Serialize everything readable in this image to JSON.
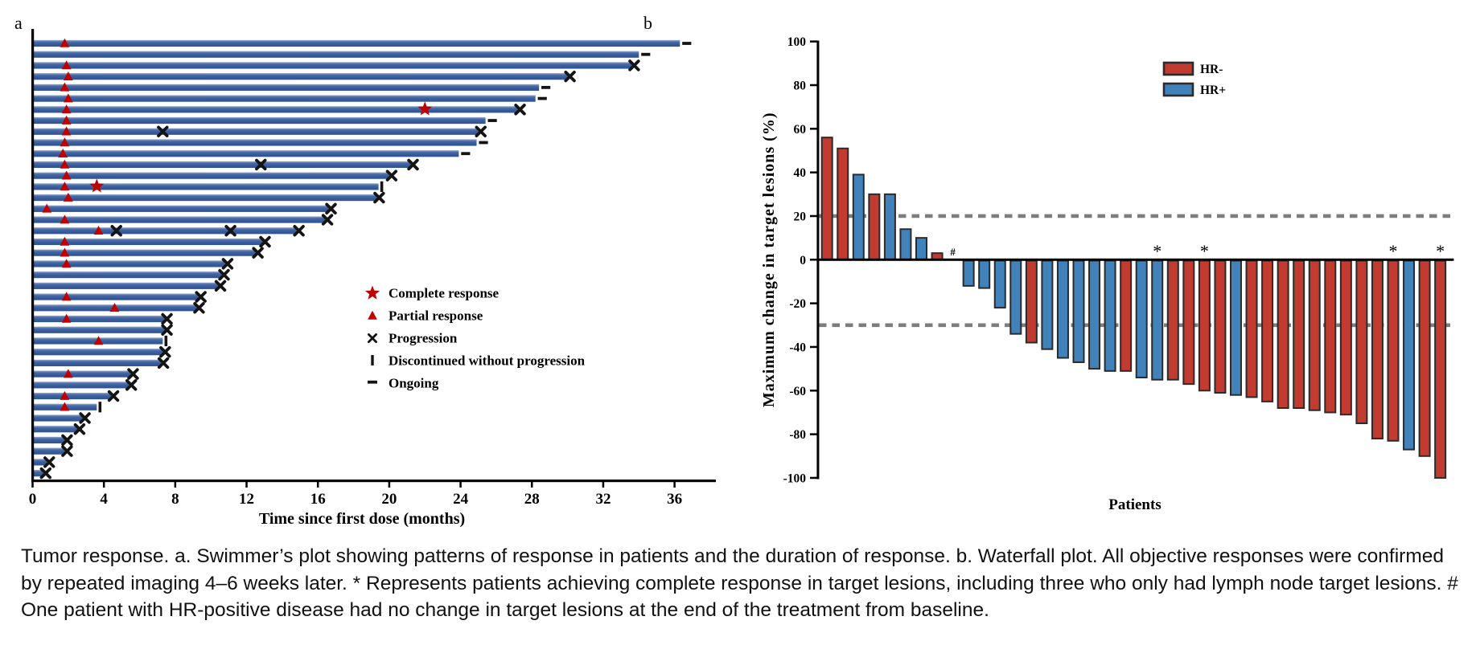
{
  "figure": {
    "panel_a_label": "a",
    "panel_b_label": "b"
  },
  "colors": {
    "swimmer_bar": "#3b5fa0",
    "swimmer_bar_light": "#97abce",
    "response_marker_red": "#c00000",
    "progression_black": "#141414",
    "hr_negative_red": "#c13b31",
    "hr_positive_blue": "#4182ba",
    "bar_outline": "#2b2b2b",
    "dashed_gray": "#7d7d7d",
    "axis_black": "#000000"
  },
  "chart_data": [
    {
      "type": "swimmer",
      "xlabel": "Time since first dose (months)",
      "x_ticks": [
        0,
        4,
        8,
        12,
        16,
        20,
        24,
        28,
        32,
        36
      ],
      "x_max": 38,
      "legend": [
        {
          "icon": "star",
          "label": "Complete response"
        },
        {
          "icon": "triangle",
          "label": "Partial response"
        },
        {
          "icon": "x",
          "label": "Progression"
        },
        {
          "icon": "bar",
          "label": "Discontinued without progression"
        },
        {
          "icon": "dash",
          "label": "Ongoing"
        }
      ],
      "lanes": [
        {
          "len": 36.3,
          "tri": 1.8,
          "star": null,
          "xs": [],
          "end": "ongoing"
        },
        {
          "len": 34.0,
          "tri": null,
          "star": null,
          "xs": [],
          "end": "ongoing"
        },
        {
          "len": 33.6,
          "tri": 1.9,
          "star": null,
          "xs": [],
          "end": "progression"
        },
        {
          "len": 30.0,
          "tri": 2.0,
          "star": null,
          "xs": [],
          "end": "progression"
        },
        {
          "len": 28.4,
          "tri": 1.8,
          "star": null,
          "xs": [],
          "end": "ongoing"
        },
        {
          "len": 28.2,
          "tri": 2.0,
          "star": null,
          "xs": [],
          "end": "ongoing"
        },
        {
          "len": 27.2,
          "tri": 1.9,
          "star": 22.0,
          "xs": [],
          "end": "progression"
        },
        {
          "len": 25.4,
          "tri": 1.9,
          "star": null,
          "xs": [],
          "end": "ongoing"
        },
        {
          "len": 25.0,
          "tri": 1.9,
          "star": null,
          "xs": [
            7.3
          ],
          "end": "progression"
        },
        {
          "len": 24.9,
          "tri": 1.8,
          "star": null,
          "xs": [],
          "end": "ongoing"
        },
        {
          "len": 23.9,
          "tri": 1.7,
          "star": null,
          "xs": [],
          "end": "ongoing"
        },
        {
          "len": 21.2,
          "tri": 1.8,
          "star": null,
          "xs": [
            12.8
          ],
          "end": "progression"
        },
        {
          "len": 20.0,
          "tri": 1.9,
          "star": null,
          "xs": [],
          "end": "progression"
        },
        {
          "len": 19.4,
          "tri": 1.8,
          "star": 3.6,
          "xs": [],
          "end": "discontinued"
        },
        {
          "len": 19.3,
          "tri": 2.0,
          "star": null,
          "xs": [],
          "end": "progression"
        },
        {
          "len": 16.6,
          "tri": 0.8,
          "star": null,
          "xs": [],
          "end": "progression"
        },
        {
          "len": 16.4,
          "tri": 1.8,
          "star": null,
          "xs": [],
          "end": "progression"
        },
        {
          "len": 14.8,
          "tri": 3.7,
          "star": null,
          "xs": [
            4.7,
            11.1
          ],
          "end": "progression"
        },
        {
          "len": 12.9,
          "tri": 1.8,
          "star": null,
          "xs": [],
          "end": "progression"
        },
        {
          "len": 12.5,
          "tri": 1.8,
          "star": null,
          "xs": [],
          "end": "progression"
        },
        {
          "len": 10.8,
          "tri": 1.9,
          "star": null,
          "xs": [],
          "end": "progression"
        },
        {
          "len": 10.6,
          "tri": null,
          "star": null,
          "xs": [],
          "end": "progression"
        },
        {
          "len": 10.4,
          "tri": null,
          "star": null,
          "xs": [],
          "end": "progression"
        },
        {
          "len": 9.3,
          "tri": 1.9,
          "star": null,
          "xs": [],
          "end": "progression"
        },
        {
          "len": 9.2,
          "tri": 4.6,
          "star": null,
          "xs": [],
          "end": "progression"
        },
        {
          "len": 7.4,
          "tri": 1.9,
          "star": null,
          "xs": [],
          "end": "progression"
        },
        {
          "len": 7.4,
          "tri": null,
          "star": null,
          "xs": [],
          "end": "progression"
        },
        {
          "len": 7.3,
          "tri": 3.7,
          "star": null,
          "xs": [],
          "end": "discontinued"
        },
        {
          "len": 7.3,
          "tri": null,
          "star": null,
          "xs": [],
          "end": "progression"
        },
        {
          "len": 7.2,
          "tri": null,
          "star": null,
          "xs": [],
          "end": "progression"
        },
        {
          "len": 5.5,
          "tri": 2.0,
          "star": null,
          "xs": [],
          "end": "progression"
        },
        {
          "len": 5.4,
          "tri": null,
          "star": null,
          "xs": [],
          "end": "progression"
        },
        {
          "len": 4.4,
          "tri": 1.8,
          "star": null,
          "xs": [],
          "end": "progression"
        },
        {
          "len": 3.6,
          "tri": 1.8,
          "star": null,
          "xs": [],
          "end": "discontinued"
        },
        {
          "len": 2.8,
          "tri": null,
          "star": null,
          "xs": [],
          "end": "progression"
        },
        {
          "len": 2.5,
          "tri": null,
          "star": null,
          "xs": [],
          "end": "progression"
        },
        {
          "len": 1.8,
          "tri": null,
          "star": null,
          "xs": [],
          "end": "progression"
        },
        {
          "len": 1.8,
          "tri": null,
          "star": null,
          "xs": [],
          "end": "progression"
        },
        {
          "len": 0.8,
          "tri": null,
          "star": null,
          "xs": [],
          "end": "progression"
        },
        {
          "len": 0.6,
          "tri": null,
          "star": null,
          "xs": [],
          "end": "progression"
        }
      ]
    },
    {
      "type": "waterfall-bar",
      "ylabel": "Maximum change in target lesions (%)",
      "xlabel": "Patients",
      "ylim": [
        -100,
        100
      ],
      "y_ticks": [
        100,
        80,
        60,
        40,
        20,
        0,
        -20,
        -40,
        -60,
        -80,
        -100
      ],
      "ref_lines": [
        20,
        -30
      ],
      "legend": [
        {
          "label": "HR-",
          "color": "#c13b31"
        },
        {
          "label": "HR+",
          "color": "#4182ba"
        }
      ],
      "bars": [
        {
          "value": 56,
          "group": "HR-",
          "mark": null
        },
        {
          "value": 51,
          "group": "HR-",
          "mark": null
        },
        {
          "value": 39,
          "group": "HR+",
          "mark": null
        },
        {
          "value": 30,
          "group": "HR-",
          "mark": null
        },
        {
          "value": 30,
          "group": "HR+",
          "mark": null
        },
        {
          "value": 14,
          "group": "HR+",
          "mark": null
        },
        {
          "value": 10,
          "group": "HR+",
          "mark": null
        },
        {
          "value": 3,
          "group": "HR-",
          "mark": null
        },
        {
          "value": 0,
          "group": "HR+",
          "mark": "#"
        },
        {
          "value": -12,
          "group": "HR+",
          "mark": null
        },
        {
          "value": -13,
          "group": "HR+",
          "mark": null
        },
        {
          "value": -22,
          "group": "HR+",
          "mark": null
        },
        {
          "value": -34,
          "group": "HR+",
          "mark": null
        },
        {
          "value": -38,
          "group": "HR-",
          "mark": null
        },
        {
          "value": -41,
          "group": "HR+",
          "mark": null
        },
        {
          "value": -45,
          "group": "HR+",
          "mark": null
        },
        {
          "value": -47,
          "group": "HR+",
          "mark": null
        },
        {
          "value": -50,
          "group": "HR+",
          "mark": null
        },
        {
          "value": -51,
          "group": "HR+",
          "mark": null
        },
        {
          "value": -51,
          "group": "HR-",
          "mark": null
        },
        {
          "value": -54,
          "group": "HR+",
          "mark": null
        },
        {
          "value": -55,
          "group": "HR+",
          "mark": "*"
        },
        {
          "value": -55,
          "group": "HR-",
          "mark": null
        },
        {
          "value": -57,
          "group": "HR-",
          "mark": null
        },
        {
          "value": -60,
          "group": "HR-",
          "mark": "*"
        },
        {
          "value": -61,
          "group": "HR-",
          "mark": null
        },
        {
          "value": -62,
          "group": "HR+",
          "mark": null
        },
        {
          "value": -63,
          "group": "HR-",
          "mark": null
        },
        {
          "value": -65,
          "group": "HR-",
          "mark": null
        },
        {
          "value": -68,
          "group": "HR-",
          "mark": null
        },
        {
          "value": -68,
          "group": "HR-",
          "mark": null
        },
        {
          "value": -69,
          "group": "HR-",
          "mark": null
        },
        {
          "value": -70,
          "group": "HR-",
          "mark": null
        },
        {
          "value": -71,
          "group": "HR-",
          "mark": null
        },
        {
          "value": -75,
          "group": "HR-",
          "mark": null
        },
        {
          "value": -82,
          "group": "HR-",
          "mark": null
        },
        {
          "value": -83,
          "group": "HR-",
          "mark": "*"
        },
        {
          "value": -87,
          "group": "HR+",
          "mark": null
        },
        {
          "value": -90,
          "group": "HR-",
          "mark": null
        },
        {
          "value": -100,
          "group": "HR-",
          "mark": "*"
        }
      ]
    }
  ],
  "caption": "Tumor response. a. Swimmer’s plot showing patterns of response in patients and the duration of response. b. Waterfall plot. All objective responses were confirmed by repeated imaging 4–6 weeks later. * Represents patients achieving complete response in target lesions, including three who only had lymph node target lesions. # One patient with HR-positive disease had no change in target lesions at the end of the treatment from baseline."
}
